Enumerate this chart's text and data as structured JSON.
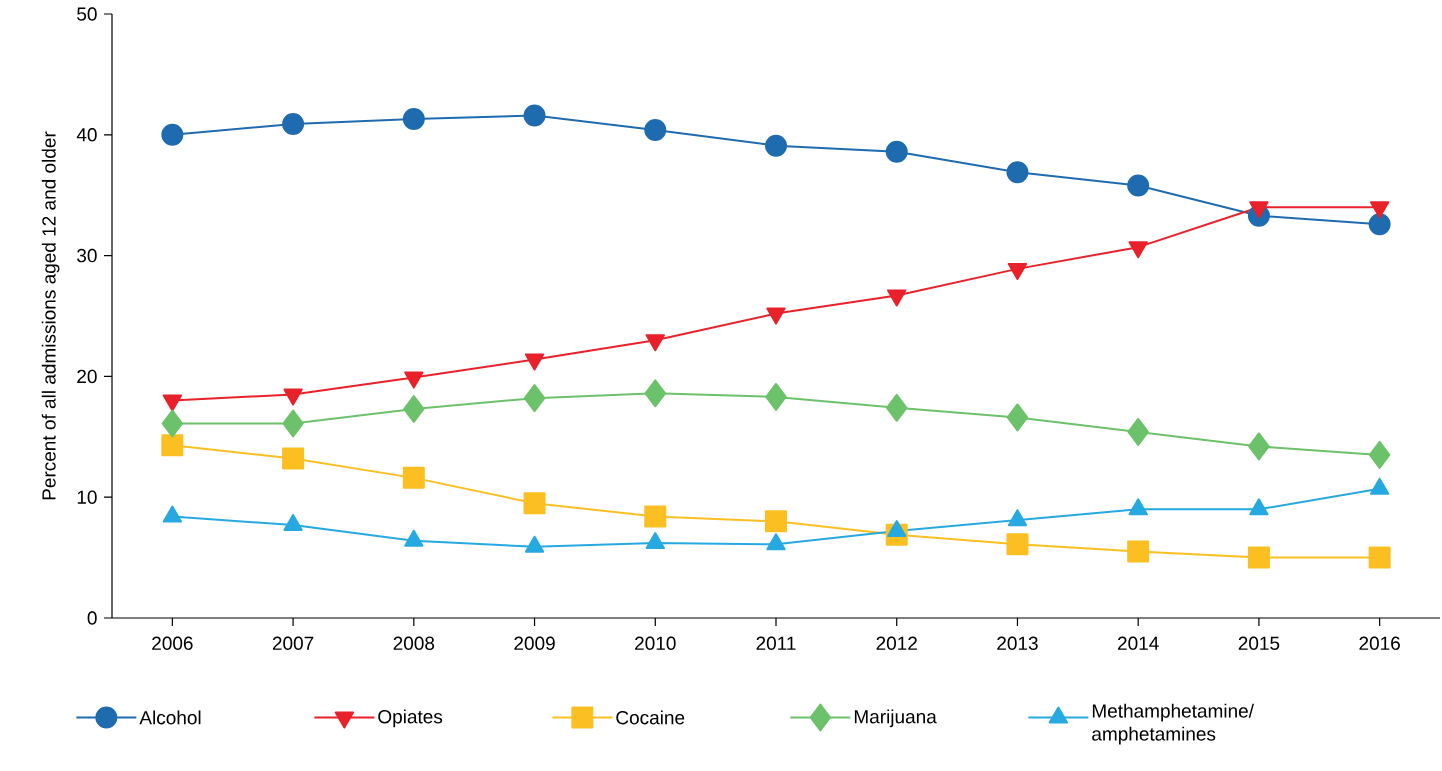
{
  "chart_data": {
    "type": "line",
    "ylabel": "Percent of all admissions aged 12 and older",
    "categories": [
      "2006",
      "2007",
      "2008",
      "2009",
      "2010",
      "2011",
      "2012",
      "2013",
      "2014",
      "2015",
      "2016"
    ],
    "ylim": [
      0,
      50
    ],
    "yticks": [
      0,
      10,
      20,
      30,
      40,
      50
    ],
    "legend": "bottom",
    "series": [
      {
        "name": "Alcohol",
        "color": "#1f6bb0",
        "marker": "circle",
        "values": [
          40.0,
          40.9,
          41.3,
          41.6,
          40.4,
          39.1,
          38.6,
          36.9,
          35.8,
          33.3,
          32.6
        ]
      },
      {
        "name": "Opiates",
        "color": "#e8212a",
        "marker": "triangle-down",
        "values": [
          18.0,
          18.5,
          19.9,
          21.4,
          23.0,
          25.2,
          26.7,
          28.9,
          30.7,
          34.0,
          34.0
        ]
      },
      {
        "name": "Cocaine",
        "color": "#fbbf22",
        "marker": "square",
        "values": [
          14.3,
          13.2,
          11.6,
          9.5,
          8.4,
          8.0,
          6.9,
          6.1,
          5.5,
          5.0,
          5.0
        ]
      },
      {
        "name": "Marijuana",
        "color": "#6cc26a",
        "marker": "diamond",
        "values": [
          16.1,
          16.1,
          17.3,
          18.2,
          18.6,
          18.3,
          17.4,
          16.6,
          15.4,
          14.2,
          13.5
        ]
      },
      {
        "name": "Methamphetamine/ amphetamines",
        "color": "#26a9e0",
        "marker": "triangle",
        "values": [
          8.4,
          7.7,
          6.4,
          5.9,
          6.2,
          6.1,
          7.2,
          8.1,
          9.0,
          9.0,
          10.7
        ]
      }
    ]
  }
}
